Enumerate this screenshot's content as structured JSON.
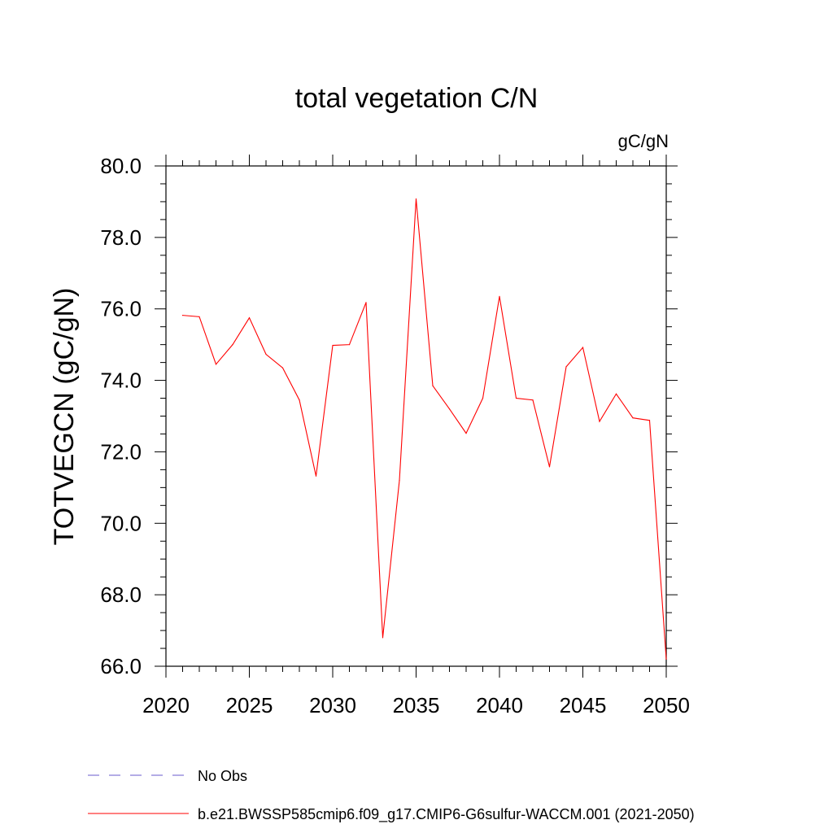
{
  "chart_data": {
    "type": "line",
    "title": "total vegetation C/N",
    "units": "gC/gN",
    "ylabel": "TOTVEGCN  (gC/gN)",
    "xlabel": "",
    "xlim": [
      2020,
      2050
    ],
    "ylim": [
      66.0,
      80.0
    ],
    "x_ticks": [
      2020,
      2025,
      2030,
      2035,
      2040,
      2045,
      2050
    ],
    "y_ticks": [
      "66.0",
      "68.0",
      "70.0",
      "72.0",
      "74.0",
      "76.0",
      "78.0",
      "80.0"
    ],
    "grid": false,
    "legend_position": "bottom",
    "x": [
      2021,
      2022,
      2023,
      2024,
      2025,
      2026,
      2027,
      2028,
      2029,
      2030,
      2031,
      2032,
      2033,
      2034,
      2035,
      2036,
      2037,
      2038,
      2039,
      2040,
      2041,
      2042,
      2043,
      2044,
      2045,
      2046,
      2047,
      2048,
      2049,
      2050
    ],
    "series": [
      {
        "name": "b.e21.BWSSP585cmip6.f09_g17.CMIP6-G6sulfur-WACCM.001 (2021-2050)",
        "color": "#ff0000",
        "style": "solid",
        "values": [
          75.82,
          75.78,
          74.45,
          75.0,
          75.75,
          74.73,
          74.35,
          73.45,
          71.32,
          74.98,
          75.0,
          76.18,
          66.8,
          71.2,
          79.08,
          73.85,
          73.2,
          72.52,
          73.5,
          76.35,
          73.5,
          73.45,
          71.58,
          74.38,
          74.92,
          72.85,
          73.62,
          72.95,
          72.88,
          66.2
        ]
      }
    ],
    "legend": [
      {
        "label": "No Obs",
        "color": "#6a5acd",
        "style": "dashed"
      },
      {
        "label": "b.e21.BWSSP585cmip6.f09_g17.CMIP6-G6sulfur-WACCM.001 (2021-2050)",
        "color": "#ff0000",
        "style": "solid"
      }
    ]
  }
}
